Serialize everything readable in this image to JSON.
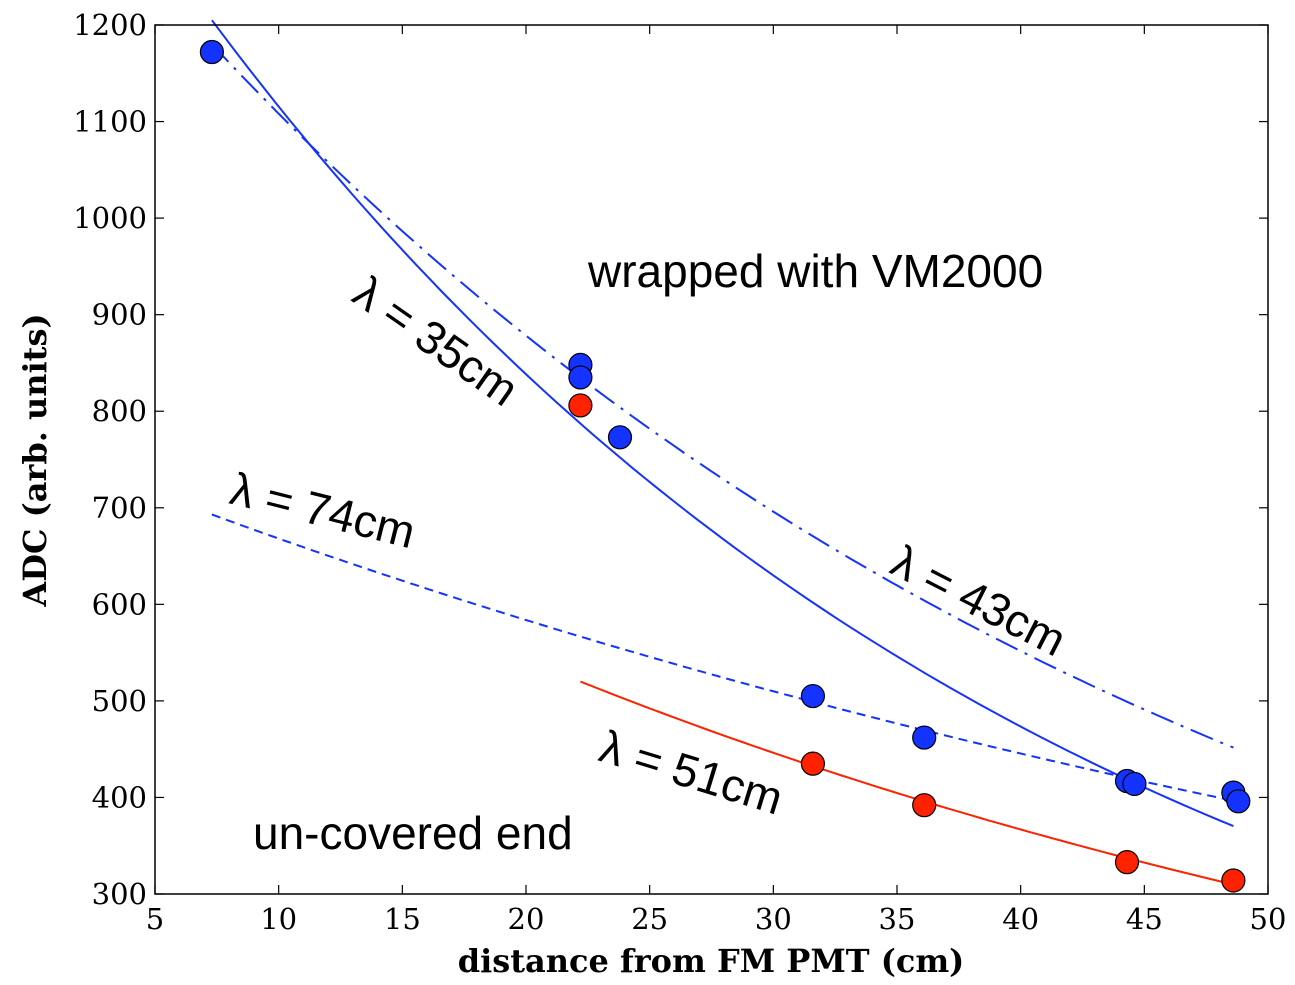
{
  "chart_data": {
    "type": "scatter",
    "xlabel": "distance from FM PMT (cm)",
    "ylabel": "ADC (arb. units)",
    "xlim": [
      5,
      50
    ],
    "ylim": [
      300,
      1200
    ],
    "xticks": [
      5,
      10,
      15,
      20,
      25,
      30,
      35,
      40,
      45,
      50
    ],
    "yticks": [
      300,
      400,
      500,
      600,
      700,
      800,
      900,
      1000,
      1100,
      1200
    ],
    "grid": false,
    "colors": {
      "blue": "#1533ff",
      "red": "#ff2200"
    },
    "series": [
      {
        "color": "blue",
        "points": [
          {
            "x": 7.3,
            "y": 1172
          },
          {
            "x": 22.2,
            "y": 848
          },
          {
            "x": 22.2,
            "y": 835
          },
          {
            "x": 23.8,
            "y": 773
          },
          {
            "x": 31.6,
            "y": 505
          },
          {
            "x": 36.1,
            "y": 462
          },
          {
            "x": 44.3,
            "y": 417
          },
          {
            "x": 44.6,
            "y": 414
          },
          {
            "x": 48.6,
            "y": 405
          },
          {
            "x": 48.8,
            "y": 396
          }
        ]
      },
      {
        "color": "red",
        "points": [
          {
            "x": 22.2,
            "y": 806
          },
          {
            "x": 31.6,
            "y": 435
          },
          {
            "x": 36.1,
            "y": 392
          },
          {
            "x": 44.3,
            "y": 333
          },
          {
            "x": 48.6,
            "y": 314
          }
        ]
      }
    ],
    "fits": [
      {
        "label": "λ = 35cm",
        "lambda": 35,
        "style": "solid",
        "color": "blue",
        "x_range": [
          7.3,
          48.6
        ],
        "y_at_start": 1205
      },
      {
        "label": "λ = 43cm",
        "lambda": 43,
        "style": "dashdot",
        "color": "blue",
        "x_range": [
          7.3,
          48.6
        ],
        "y_at_start": 1180
      },
      {
        "label": "λ = 74cm",
        "lambda": 74,
        "style": "dashed",
        "color": "blue",
        "x_range": [
          7.3,
          48.6
        ],
        "y_at_start": 693
      },
      {
        "label": "λ = 51cm",
        "lambda": 51,
        "style": "solid",
        "color": "red",
        "x_range": [
          22.2,
          48.6
        ],
        "y_at_start": 520
      }
    ],
    "annotations": [
      {
        "text": "wrapped with VM2000",
        "color": "blue"
      },
      {
        "text": "un-covered end",
        "color": "red"
      }
    ]
  }
}
